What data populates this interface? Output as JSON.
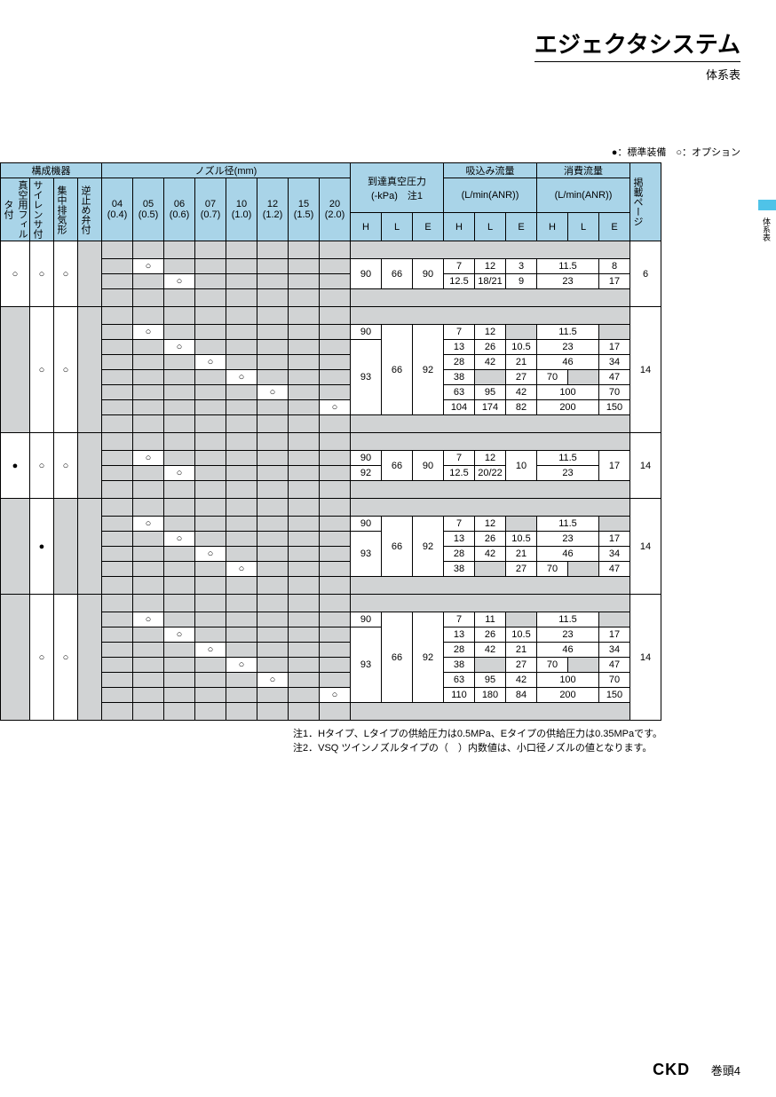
{
  "title": "エジェクタシステム",
  "subtitle": "体系表",
  "legend": "●：標準装備　○：オプション",
  "sideTab": "体系表",
  "headers": {
    "equip_group": "構成機器",
    "equip": [
      "真空用フィルタ付",
      "サイレンサ付",
      "集中排気形",
      "逆止め弁付"
    ],
    "nozzle_group": "ノズル径(mm)",
    "nozzle_top": [
      "04",
      "05",
      "06",
      "07",
      "10",
      "12",
      "15",
      "20"
    ],
    "nozzle_bot": [
      "(0.4)",
      "(0.5)",
      "(0.6)",
      "(0.7)",
      "(1.0)",
      "(1.2)",
      "(1.5)",
      "(2.0)"
    ],
    "vacuum": "到達真空圧力",
    "vacuum_sub": "(-kPa)　注1",
    "suction": "吸込み流量",
    "suction_sub": "(L/min(ANR))",
    "consume": "消費流量",
    "consume_sub": "(L/min(ANR))",
    "hle": [
      "H",
      "L",
      "E"
    ],
    "page": "掲載ページ"
  },
  "sections": [
    {
      "span": 4,
      "equip": [
        "○",
        "○",
        "○",
        ""
      ],
      "equip_gray": [
        false,
        false,
        false,
        true
      ],
      "page": "6",
      "rows": [
        {
          "noz": [
            "",
            "",
            "",
            "",
            "",
            "",
            "",
            ""
          ],
          "free": [
            false,
            false,
            false,
            false,
            false,
            false,
            false,
            false
          ]
        },
        {
          "noz": [
            "",
            "○",
            "",
            "",
            "",
            "",
            "",
            ""
          ],
          "free": [
            false,
            true,
            false,
            false,
            false,
            false,
            false,
            false
          ],
          "vH": "90",
          "vL": "66",
          "vE": "90",
          "sH": "7",
          "sL": "12",
          "sE": "3",
          "cH": "11.5",
          "cL": "",
          "cE": "8",
          "vH_rs": 2,
          "vL_rs": 2,
          "vE_rs": 2,
          "cH_cs": 2,
          "cH_rs": 1
        },
        {
          "noz": [
            "",
            "",
            "○",
            "",
            "",
            "",
            "",
            ""
          ],
          "free": [
            false,
            false,
            true,
            false,
            false,
            false,
            false,
            false
          ],
          "sH": "12.5",
          "sL": "18/21",
          "sE": "9",
          "cH": "23",
          "cL": "",
          "cE": "17",
          "cH_cs": 2
        },
        {
          "noz": [
            "",
            "",
            "",
            "",
            "",
            "",
            "",
            ""
          ],
          "free": [
            false,
            false,
            false,
            false,
            false,
            false,
            false,
            false
          ]
        }
      ]
    },
    {
      "span": 8,
      "equip": [
        "",
        "○",
        "○",
        ""
      ],
      "equip_gray": [
        true,
        false,
        false,
        true
      ],
      "page": "14",
      "rows": [
        {
          "noz": [
            "",
            "",
            "",
            "",
            "",
            "",
            "",
            ""
          ],
          "free": [
            false,
            false,
            false,
            false,
            false,
            false,
            false,
            false
          ]
        },
        {
          "noz": [
            "",
            "○",
            "",
            "",
            "",
            "",
            "",
            ""
          ],
          "free": [
            false,
            true,
            false,
            false,
            false,
            false,
            false,
            false
          ],
          "vH": "90",
          "vL": "66",
          "vE": "92",
          "sH": "7",
          "sL": "12",
          "sE": "",
          "cH": "11.5",
          "cL": "",
          "cE": "",
          "vL_rs": 6,
          "vE_rs": 6,
          "cH_cs": 2
        },
        {
          "noz": [
            "",
            "",
            "○",
            "",
            "",
            "",
            "",
            ""
          ],
          "free": [
            false,
            false,
            true,
            false,
            false,
            false,
            false,
            false
          ],
          "vH": "93",
          "vH_rs": 5,
          "sH": "13",
          "sL": "26",
          "sE": "10.5",
          "cH": "23",
          "cL": "",
          "cE": "17",
          "cH_cs": 2
        },
        {
          "noz": [
            "",
            "",
            "",
            "○",
            "",
            "",
            "",
            ""
          ],
          "free": [
            false,
            false,
            false,
            true,
            false,
            false,
            false,
            false
          ],
          "sH": "28",
          "sL": "42",
          "sE": "21",
          "cH": "46",
          "cL": "",
          "cE": "34",
          "cH_cs": 2
        },
        {
          "noz": [
            "",
            "",
            "",
            "",
            "○",
            "",
            "",
            ""
          ],
          "free": [
            false,
            false,
            false,
            false,
            true,
            false,
            false,
            false
          ],
          "sH": "38",
          "sL": "",
          "sE": "27",
          "cH": "70",
          "cL": "",
          "cE": "47"
        },
        {
          "noz": [
            "",
            "",
            "",
            "",
            "",
            "○",
            "",
            ""
          ],
          "free": [
            false,
            false,
            false,
            false,
            false,
            true,
            false,
            false
          ],
          "sH": "63",
          "sL": "95",
          "sE": "42",
          "cH": "100",
          "cL": "",
          "cE": "70",
          "cH_cs": 2
        },
        {
          "noz": [
            "",
            "",
            "",
            "",
            "",
            "",
            "",
            "○"
          ],
          "free": [
            false,
            false,
            false,
            false,
            false,
            false,
            false,
            true
          ],
          "sH": "104",
          "sL": "174",
          "sE": "82",
          "cH": "200",
          "cL": "",
          "cE": "150",
          "cH_cs": 2
        },
        {
          "noz": [
            "",
            "",
            "",
            "",
            "",
            "",
            "",
            ""
          ],
          "free": [
            false,
            false,
            false,
            false,
            false,
            false,
            false,
            false
          ]
        }
      ]
    },
    {
      "span": 4,
      "equip": [
        "●",
        "○",
        "○",
        ""
      ],
      "equip_gray": [
        false,
        false,
        false,
        true
      ],
      "page": "14",
      "rows": [
        {
          "noz": [
            "",
            "",
            "",
            "",
            "",
            "",
            "",
            ""
          ],
          "free": [
            false,
            false,
            false,
            false,
            false,
            false,
            false,
            false
          ]
        },
        {
          "noz": [
            "",
            "○",
            "",
            "",
            "",
            "",
            "",
            ""
          ],
          "free": [
            false,
            true,
            false,
            false,
            false,
            false,
            false,
            false
          ],
          "vH": "90",
          "vL": "66",
          "vE": "90",
          "sH": "7",
          "sL": "12",
          "sE": "10",
          "cH": "11.5",
          "cL": "",
          "cE": "17",
          "vL_rs": 2,
          "vE_rs": 2,
          "sE_rs": 2,
          "cE_rs": 2,
          "cH_cs": 2
        },
        {
          "noz": [
            "",
            "",
            "○",
            "",
            "",
            "",
            "",
            ""
          ],
          "free": [
            false,
            false,
            true,
            false,
            false,
            false,
            false,
            false
          ],
          "vH": "92",
          "sH": "12.5",
          "sL": "20/22",
          "cH": "23",
          "cL": "",
          "cH_cs": 2
        },
        {
          "noz": [
            "",
            "",
            "",
            "",
            "",
            "",
            "",
            ""
          ],
          "free": [
            false,
            false,
            false,
            false,
            false,
            false,
            false,
            false
          ]
        }
      ]
    },
    {
      "span": 6,
      "equip": [
        "",
        "●",
        "",
        ""
      ],
      "equip_gray": [
        true,
        false,
        true,
        true
      ],
      "page": "14",
      "rows": [
        {
          "noz": [
            "",
            "",
            "",
            "",
            "",
            "",
            "",
            ""
          ],
          "free": [
            false,
            false,
            false,
            false,
            false,
            false,
            false,
            false
          ]
        },
        {
          "noz": [
            "",
            "○",
            "",
            "",
            "",
            "",
            "",
            ""
          ],
          "free": [
            false,
            true,
            false,
            false,
            false,
            false,
            false,
            false
          ],
          "vH": "90",
          "vL": "66",
          "vE": "92",
          "sH": "7",
          "sL": "12",
          "sE": "",
          "cH": "11.5",
          "cL": "",
          "cE": "",
          "vL_rs": 4,
          "vE_rs": 4,
          "cH_cs": 2
        },
        {
          "noz": [
            "",
            "",
            "○",
            "",
            "",
            "",
            "",
            ""
          ],
          "free": [
            false,
            false,
            true,
            false,
            false,
            false,
            false,
            false
          ],
          "vH": "93",
          "vH_rs": 3,
          "sH": "13",
          "sL": "26",
          "sE": "10.5",
          "cH": "23",
          "cL": "",
          "cE": "17",
          "cH_cs": 2
        },
        {
          "noz": [
            "",
            "",
            "",
            "○",
            "",
            "",
            "",
            ""
          ],
          "free": [
            false,
            false,
            false,
            true,
            false,
            false,
            false,
            false
          ],
          "sH": "28",
          "sL": "42",
          "sE": "21",
          "cH": "46",
          "cL": "",
          "cE": "34",
          "cH_cs": 2
        },
        {
          "noz": [
            "",
            "",
            "",
            "",
            "○",
            "",
            "",
            ""
          ],
          "free": [
            false,
            false,
            false,
            false,
            true,
            false,
            false,
            false
          ],
          "sH": "38",
          "sL": "",
          "sE": "27",
          "cH": "70",
          "cL": "",
          "cE": "47"
        },
        {
          "noz": [
            "",
            "",
            "",
            "",
            "",
            "",
            "",
            ""
          ],
          "free": [
            false,
            false,
            false,
            false,
            false,
            false,
            false,
            false
          ]
        }
      ]
    },
    {
      "span": 8,
      "equip": [
        "",
        "○",
        "○",
        ""
      ],
      "equip_gray": [
        true,
        false,
        false,
        true
      ],
      "page": "14",
      "rows": [
        {
          "noz": [
            "",
            "",
            "",
            "",
            "",
            "",
            "",
            ""
          ],
          "free": [
            false,
            false,
            false,
            false,
            false,
            false,
            false,
            false
          ]
        },
        {
          "noz": [
            "",
            "○",
            "",
            "",
            "",
            "",
            "",
            ""
          ],
          "free": [
            false,
            true,
            false,
            false,
            false,
            false,
            false,
            false
          ],
          "vH": "90",
          "vL": "66",
          "vE": "92",
          "sH": "7",
          "sL": "11",
          "sE": "",
          "cH": "11.5",
          "cL": "",
          "cE": "",
          "vL_rs": 6,
          "vE_rs": 6,
          "cH_cs": 2
        },
        {
          "noz": [
            "",
            "",
            "○",
            "",
            "",
            "",
            "",
            ""
          ],
          "free": [
            false,
            false,
            true,
            false,
            false,
            false,
            false,
            false
          ],
          "vH": "93",
          "vH_rs": 5,
          "sH": "13",
          "sL": "26",
          "sE": "10.5",
          "cH": "23",
          "cL": "",
          "cE": "17",
          "cH_cs": 2
        },
        {
          "noz": [
            "",
            "",
            "",
            "○",
            "",
            "",
            "",
            ""
          ],
          "free": [
            false,
            false,
            false,
            true,
            false,
            false,
            false,
            false
          ],
          "sH": "28",
          "sL": "42",
          "sE": "21",
          "cH": "46",
          "cL": "",
          "cE": "34",
          "cH_cs": 2
        },
        {
          "noz": [
            "",
            "",
            "",
            "",
            "○",
            "",
            "",
            ""
          ],
          "free": [
            false,
            false,
            false,
            false,
            true,
            false,
            false,
            false
          ],
          "sH": "38",
          "sL": "",
          "sE": "27",
          "cH": "70",
          "cL": "",
          "cE": "47"
        },
        {
          "noz": [
            "",
            "",
            "",
            "",
            "",
            "○",
            "",
            ""
          ],
          "free": [
            false,
            false,
            false,
            false,
            false,
            true,
            false,
            false
          ],
          "sH": "63",
          "sL": "95",
          "sE": "42",
          "cH": "100",
          "cL": "",
          "cE": "70",
          "cH_cs": 2
        },
        {
          "noz": [
            "",
            "",
            "",
            "",
            "",
            "",
            "",
            "○"
          ],
          "free": [
            false,
            false,
            false,
            false,
            false,
            false,
            false,
            true
          ],
          "sH": "110",
          "sL": "180",
          "sE": "84",
          "cH": "200",
          "cL": "",
          "cE": "150",
          "cH_cs": 2
        },
        {
          "noz": [
            "",
            "",
            "",
            "",
            "",
            "",
            "",
            ""
          ],
          "free": [
            false,
            false,
            false,
            false,
            false,
            false,
            false,
            false
          ]
        }
      ]
    }
  ],
  "notes": [
    "注1．Hタイプ、Lタイプの供給圧力は0.5MPa、Eタイプの供給圧力は0.35MPaです。",
    "注2．VSQ ツインノズルタイプの（　）内数値は、小口径ノズルの値となります。"
  ],
  "footer_brand": "CKD",
  "footer_page": "巻頭4",
  "colors": {
    "header_bg": "#a9d4e8",
    "gray_bg": "#d1d3d4",
    "tab": "#4fc3e8"
  },
  "row_height_pad": 20,
  "row_height_data": 17
}
